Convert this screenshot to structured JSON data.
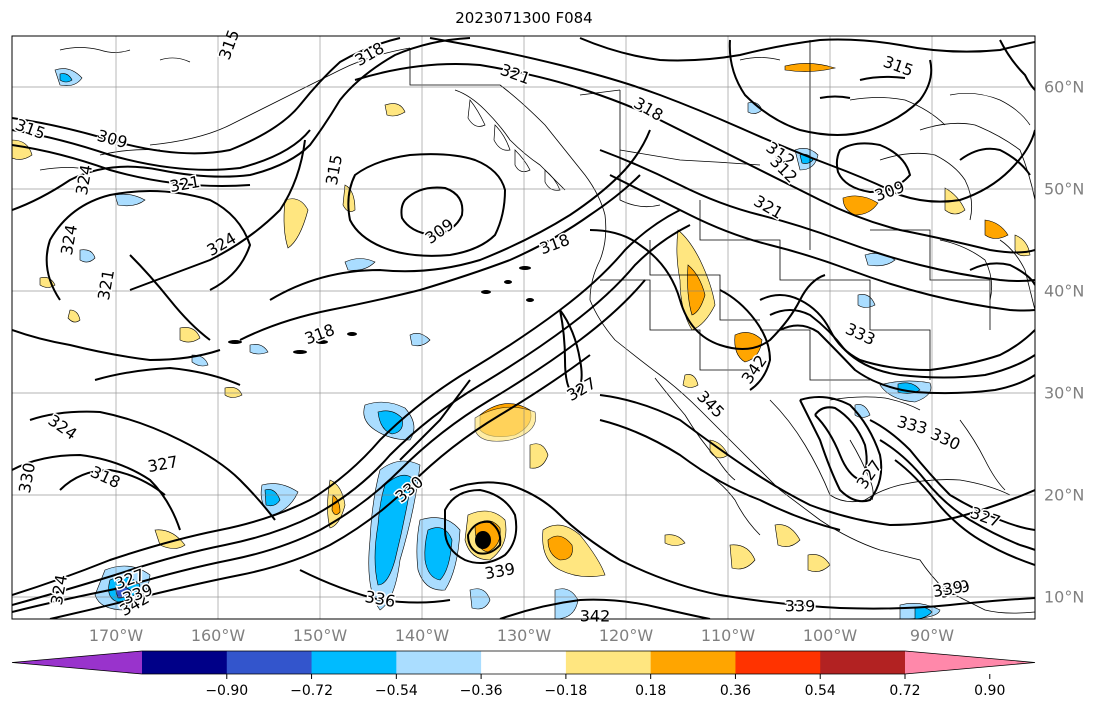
{
  "title": "2023071300 F084",
  "map": {
    "lon_labels": [
      "170°W",
      "160°W",
      "150°W",
      "140°W",
      "130°W",
      "120°W",
      "110°W",
      "100°W",
      "90°W"
    ],
    "lat_labels": [
      "60°N",
      "50°N",
      "40°N",
      "30°N",
      "20°N",
      "10°N"
    ],
    "contour_labels": [
      "318",
      "321",
      "318",
      "315",
      "315",
      "312",
      "309",
      "321",
      "315",
      "324",
      "324",
      "321",
      "309",
      "318",
      "324",
      "318",
      "339",
      "333",
      "327",
      "342",
      "345",
      "324",
      "318",
      "327",
      "330",
      "330",
      "339",
      "336",
      "342",
      "339",
      "327",
      "330",
      "333",
      "327",
      "339",
      "342",
      "339",
      "324",
      "327",
      "309",
      "312",
      "315",
      "321"
    ]
  },
  "colorbar": {
    "tick_labels": [
      "−0.90",
      "−0.72",
      "−0.54",
      "−0.36",
      "−0.18",
      "0.18",
      "0.36",
      "0.54",
      "0.72",
      "0.90"
    ],
    "colors": [
      "#9933cc",
      "#000088",
      "#3355cc",
      "#00bbff",
      "#aaddff",
      "#ffffff",
      "#ffe680",
      "#ffa500",
      "#ff3300",
      "#b22222",
      "#ff88aa"
    ],
    "extend": "both"
  }
}
